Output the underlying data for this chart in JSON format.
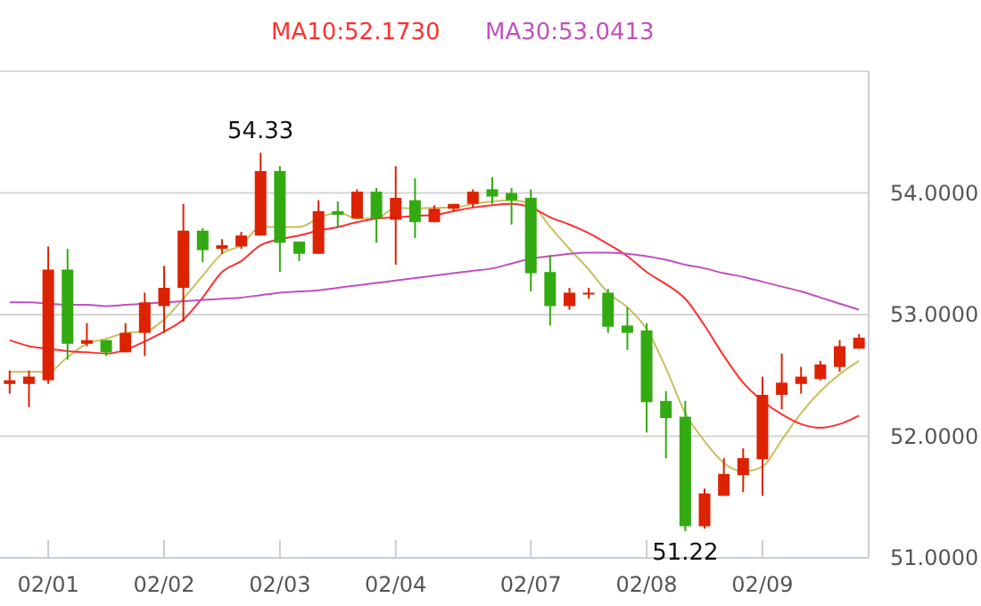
{
  "chart_data": {
    "type": "candlestick",
    "categories": [
      null,
      null,
      "02/01",
      null,
      null,
      null,
      null,
      null,
      "02/02",
      null,
      null,
      null,
      null,
      null,
      "02/03",
      null,
      null,
      null,
      null,
      null,
      "02/04",
      null,
      null,
      null,
      null,
      null,
      null,
      "02/07",
      null,
      null,
      null,
      null,
      null,
      "02/08",
      null,
      null,
      null,
      null,
      null,
      "02/09",
      null,
      null,
      null,
      null,
      null
    ],
    "ohlc": [
      [
        52.43,
        52.54,
        52.35,
        52.46
      ],
      [
        52.43,
        52.54,
        52.24,
        52.49
      ],
      [
        52.46,
        53.56,
        52.43,
        53.37
      ],
      [
        53.37,
        53.54,
        52.63,
        52.76
      ],
      [
        52.76,
        52.93,
        52.74,
        52.79
      ],
      [
        52.79,
        52.79,
        52.66,
        52.69
      ],
      [
        52.69,
        52.93,
        52.69,
        52.85
      ],
      [
        52.85,
        53.18,
        52.66,
        53.1
      ],
      [
        53.07,
        53.4,
        52.85,
        53.22
      ],
      [
        53.22,
        53.91,
        52.94,
        53.69
      ],
      [
        53.69,
        53.71,
        53.43,
        53.53
      ],
      [
        53.54,
        53.62,
        53.5,
        53.57
      ],
      [
        53.56,
        53.68,
        53.54,
        53.65
      ],
      [
        53.65,
        54.33,
        53.65,
        54.18
      ],
      [
        54.18,
        54.22,
        53.35,
        53.59
      ],
      [
        53.6,
        53.6,
        53.44,
        53.5
      ],
      [
        53.5,
        53.94,
        53.5,
        53.85
      ],
      [
        53.85,
        53.93,
        53.71,
        53.82
      ],
      [
        53.79,
        54.03,
        53.79,
        54.01
      ],
      [
        54.01,
        54.04,
        53.59,
        53.79
      ],
      [
        53.78,
        54.22,
        53.41,
        53.96
      ],
      [
        53.94,
        54.12,
        53.63,
        53.76
      ],
      [
        53.76,
        53.9,
        53.76,
        53.87
      ],
      [
        53.87,
        53.91,
        53.85,
        53.91
      ],
      [
        53.91,
        54.03,
        53.88,
        54.01
      ],
      [
        54.03,
        54.13,
        53.91,
        53.97
      ],
      [
        54.0,
        54.04,
        53.74,
        53.94
      ],
      [
        53.96,
        54.03,
        53.19,
        53.34
      ],
      [
        53.35,
        53.49,
        52.91,
        53.07
      ],
      [
        53.07,
        53.22,
        53.04,
        53.18
      ],
      [
        53.17,
        53.22,
        53.13,
        53.18
      ],
      [
        53.18,
        53.21,
        52.85,
        52.9
      ],
      [
        52.91,
        53.06,
        52.71,
        52.85
      ],
      [
        52.87,
        52.93,
        52.03,
        52.28
      ],
      [
        52.29,
        52.37,
        51.82,
        52.15
      ],
      [
        52.16,
        52.29,
        51.22,
        51.26
      ],
      [
        51.26,
        51.57,
        51.24,
        51.53
      ],
      [
        51.51,
        51.82,
        51.51,
        51.69
      ],
      [
        51.68,
        51.9,
        51.54,
        51.82
      ],
      [
        51.81,
        52.49,
        51.51,
        52.34
      ],
      [
        52.34,
        52.68,
        52.22,
        52.44
      ],
      [
        52.43,
        52.57,
        52.35,
        52.49
      ],
      [
        52.47,
        52.62,
        52.46,
        52.59
      ],
      [
        52.57,
        52.79,
        52.53,
        52.74
      ],
      [
        52.72,
        52.84,
        52.72,
        52.81
      ]
    ],
    "colors": [
      "#dd2200",
      "#dd2200",
      "#dd2200",
      "#33aa11",
      "#dd2200",
      "#33aa11",
      "#dd2200",
      "#dd2200",
      "#dd2200",
      "#dd2200",
      "#33aa11",
      "#dd2200",
      "#dd2200",
      "#dd2200",
      "#33aa11",
      "#33aa11",
      "#dd2200",
      "#33aa11",
      "#dd2200",
      "#33aa11",
      "#dd2200",
      "#33aa11",
      "#dd2200",
      "#dd2200",
      "#dd2200",
      "#33aa11",
      "#33aa11",
      "#33aa11",
      "#33aa11",
      "#dd2200",
      "#dd2200",
      "#33aa11",
      "#33aa11",
      "#33aa11",
      "#33aa11",
      "#33aa11",
      "#dd2200",
      "#dd2200",
      "#dd2200",
      "#dd2200",
      "#dd2200",
      "#dd2200",
      "#dd2200",
      "#dd2200",
      "#dd2200"
    ],
    "series": [
      {
        "type": "line",
        "color": "#c8c060",
        "values": [
          52.53,
          52.53,
          52.53,
          52.65,
          52.76,
          52.8,
          52.85,
          52.86,
          52.96,
          53.13,
          53.32,
          53.5,
          53.57,
          53.72,
          53.72,
          53.72,
          53.79,
          53.84,
          53.79,
          53.79,
          53.88,
          53.87,
          53.88,
          53.88,
          53.91,
          53.93,
          53.94,
          53.91,
          53.72,
          53.54,
          53.37,
          53.18,
          53.06,
          52.88,
          52.56,
          52.19,
          51.96,
          51.78,
          51.71,
          51.75,
          51.97,
          52.19,
          52.37,
          52.51,
          52.62
        ]
      },
      {
        "type": "line",
        "name": "MA10:52.1730",
        "color": "#ff3030",
        "values": [
          52.79,
          52.74,
          52.72,
          52.7,
          52.69,
          52.68,
          52.71,
          52.78,
          52.86,
          52.96,
          53.14,
          53.35,
          53.44,
          53.57,
          53.62,
          53.65,
          53.69,
          53.72,
          53.76,
          53.79,
          53.8,
          53.81,
          53.82,
          53.85,
          53.88,
          53.9,
          53.91,
          53.88,
          53.8,
          53.74,
          53.67,
          53.58,
          53.48,
          53.35,
          53.25,
          53.13,
          52.91,
          52.66,
          52.44,
          52.29,
          52.18,
          52.1,
          52.07,
          52.1,
          52.17
        ]
      },
      {
        "type": "line",
        "name": "MA30:53.0413",
        "color": "#c050c0",
        "values": [
          53.1,
          53.1,
          53.09,
          53.08,
          53.08,
          53.07,
          53.08,
          53.09,
          53.1,
          53.11,
          53.12,
          53.13,
          53.14,
          53.16,
          53.18,
          53.19,
          53.2,
          53.22,
          53.24,
          53.26,
          53.28,
          53.3,
          53.32,
          53.34,
          53.36,
          53.38,
          53.42,
          53.46,
          53.48,
          53.5,
          53.51,
          53.51,
          53.5,
          53.48,
          53.45,
          53.41,
          53.38,
          53.34,
          53.31,
          53.27,
          53.23,
          53.19,
          53.14,
          53.09,
          53.04
        ]
      }
    ],
    "ylim": [
      51,
      55
    ],
    "yticks": [
      {
        "value": 51,
        "label": "51.0000"
      },
      {
        "value": 52,
        "label": "52.0000"
      },
      {
        "value": 53,
        "label": "53.0000"
      },
      {
        "value": 54,
        "label": "54.0000"
      }
    ],
    "grid": "y",
    "legend": "top",
    "line_style": "solid",
    "annotations": [
      {
        "text": "54.33",
        "y": 54.33
      },
      {
        "text": "51.22",
        "y": 51.22
      }
    ]
  }
}
